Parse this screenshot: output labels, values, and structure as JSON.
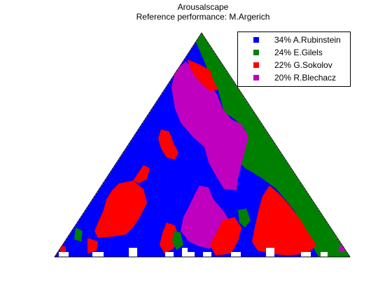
{
  "chart_data": {
    "type": "heatmap",
    "title": "Arousalscape",
    "subtitle": "Reference performance: M.Argerich",
    "legend_placement": "top-right",
    "series": [
      {
        "name": "34% A.Rubinstein",
        "share_percent": 34,
        "color": "#0000ff"
      },
      {
        "name": "24% E.Gilels",
        "share_percent": 24,
        "color": "#008000"
      },
      {
        "name": "22% G.Sokolov",
        "share_percent": 22,
        "color": "#ff0000"
      },
      {
        "name": "20% R.Blechacz",
        "share_percent": 20,
        "color": "#bf00bf"
      }
    ]
  },
  "colors": {
    "background": "#ffffff",
    "rubinstein": "#0000ff",
    "gilels": "#008000",
    "sokolov": "#ff0000",
    "blechacz": "#bf00bf"
  }
}
